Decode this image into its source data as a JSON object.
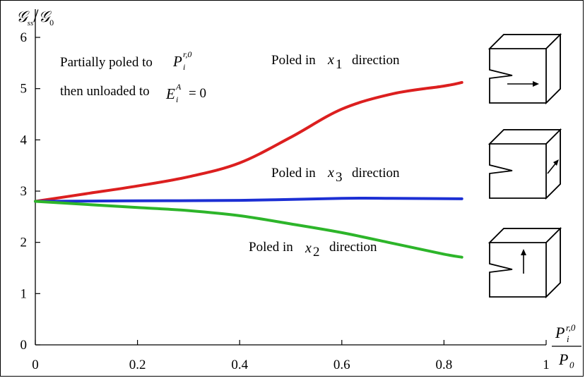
{
  "chart_data": {
    "type": "line",
    "title": "",
    "ylabel": "𝒢ss/𝒢0",
    "ylabel_parts": {
      "G1": "𝒢",
      "sub1": "ss",
      "slash": "/",
      "G2": "𝒢",
      "sub2": "0"
    },
    "xlabel_parts": {
      "P_num": "P",
      "num_sup": "r,0",
      "num_sub": "i",
      "P_den": "P",
      "den_sub": "0"
    },
    "xlim": [
      0,
      1
    ],
    "ylim": [
      0,
      6
    ],
    "x_ticks": [
      "0",
      "0.2",
      "0.4",
      "0.6",
      "0.8",
      "1"
    ],
    "y_ticks": [
      "0",
      "1",
      "2",
      "3",
      "4",
      "5",
      "6"
    ],
    "series": [
      {
        "name": "Poled in x1 direction",
        "color": "#dc1f1f",
        "x": [
          0,
          0.1,
          0.2,
          0.3,
          0.4,
          0.5,
          0.6,
          0.7,
          0.8,
          0.835
        ],
        "y": [
          2.8,
          2.95,
          3.1,
          3.28,
          3.55,
          4.05,
          4.6,
          4.9,
          5.05,
          5.12
        ]
      },
      {
        "name": "Poled in x3 direction",
        "color": "#1c2fd4",
        "x": [
          0,
          0.2,
          0.4,
          0.6,
          0.7,
          0.835
        ],
        "y": [
          2.8,
          2.81,
          2.82,
          2.86,
          2.86,
          2.85
        ]
      },
      {
        "name": "Poled in x2 direction",
        "color": "#2db52a",
        "x": [
          0,
          0.1,
          0.2,
          0.3,
          0.4,
          0.5,
          0.6,
          0.7,
          0.8,
          0.835
        ],
        "y": [
          2.8,
          2.74,
          2.68,
          2.62,
          2.52,
          2.36,
          2.19,
          1.98,
          1.77,
          1.71
        ]
      }
    ],
    "annotations": {
      "partial_prefix": "Partially poled to",
      "partial_P": "P",
      "partial_sub": "i",
      "partial_sup": "r,0",
      "unloaded_prefix": "then unloaded to",
      "unloaded_E": "E",
      "unloaded_sub": "i",
      "unloaded_sup": "A",
      "unloaded_eq": "= 0",
      "poled_prefix": "Poled in",
      "poled_suffix": "direction",
      "x_var": "x",
      "x1_sub": "1",
      "x3_sub": "3",
      "x2_sub": "2"
    },
    "grid": false,
    "legend": "none"
  }
}
